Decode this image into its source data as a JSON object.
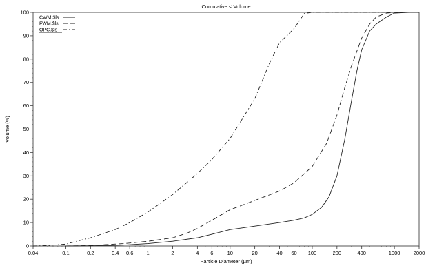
{
  "chart_data": {
    "type": "line",
    "title": "Cumulative < Volume",
    "xlabel": "Particle Diameter (µm)",
    "ylabel": "Volume (%)",
    "x_scale": "log",
    "xlim": [
      0.04,
      2000
    ],
    "ylim": [
      0,
      100
    ],
    "grid": false,
    "legend_position": "top-left",
    "x_ticks": [
      0.04,
      0.1,
      0.2,
      0.4,
      0.6,
      1,
      2,
      4,
      6,
      10,
      20,
      40,
      60,
      100,
      200,
      400,
      1000,
      2000
    ],
    "x_tick_labels": [
      "0.04",
      "0.1",
      "0.2",
      "0.4",
      "0.6",
      "1",
      "2",
      "4",
      "6",
      "10",
      "20",
      "40",
      "60",
      "100",
      "200",
      "400",
      "1000",
      "2000"
    ],
    "y_ticks": [
      0,
      10,
      20,
      30,
      40,
      50,
      60,
      70,
      80,
      90,
      100
    ],
    "y_tick_labels": [
      "0",
      "10",
      "20",
      "30",
      "40",
      "50",
      "60",
      "70",
      "80",
      "90",
      "100"
    ],
    "series": [
      {
        "name": "CWM.$ls",
        "color": "#222222",
        "dash": "solid",
        "x": [
          0.1,
          0.2,
          0.5,
          1,
          2,
          4,
          6,
          10,
          20,
          40,
          60,
          80,
          100,
          130,
          160,
          200,
          250,
          300,
          350,
          400,
          500,
          600,
          800,
          1000,
          1500,
          2000
        ],
        "y": [
          0,
          0.1,
          0.4,
          1,
          2,
          3.5,
          5,
          7,
          8.5,
          10,
          11,
          12,
          13.5,
          16.5,
          21,
          30,
          46,
          62,
          75,
          84,
          92,
          95,
          98,
          99.7,
          100,
          100
        ]
      },
      {
        "name": "FWM.$ls",
        "color": "#222222",
        "dash": "dashed",
        "x": [
          0.1,
          0.2,
          0.5,
          1,
          2,
          3,
          4,
          6,
          10,
          20,
          40,
          60,
          100,
          150,
          200,
          250,
          300,
          400,
          500,
          600,
          800,
          1000,
          1500,
          2000
        ],
        "y": [
          0,
          0.2,
          1,
          2,
          3.5,
          5.5,
          7.5,
          11,
          15.5,
          19.5,
          23.5,
          27,
          34,
          44,
          56,
          68,
          77,
          89,
          95,
          98,
          99.7,
          100,
          100,
          100
        ]
      },
      {
        "name": "OPC.$ls",
        "color": "#222222",
        "dash": "dashdot",
        "x": [
          0.04,
          0.06,
          0.1,
          0.2,
          0.4,
          0.6,
          1,
          2,
          4,
          6,
          10,
          20,
          30,
          40,
          60,
          80,
          100,
          200,
          400,
          1000,
          2000
        ],
        "y": [
          0,
          0.2,
          0.8,
          3.5,
          7,
          10,
          14.5,
          22,
          31,
          37,
          46,
          63,
          78,
          87,
          93,
          99.5,
          100,
          100,
          100,
          100,
          100
        ]
      }
    ]
  }
}
